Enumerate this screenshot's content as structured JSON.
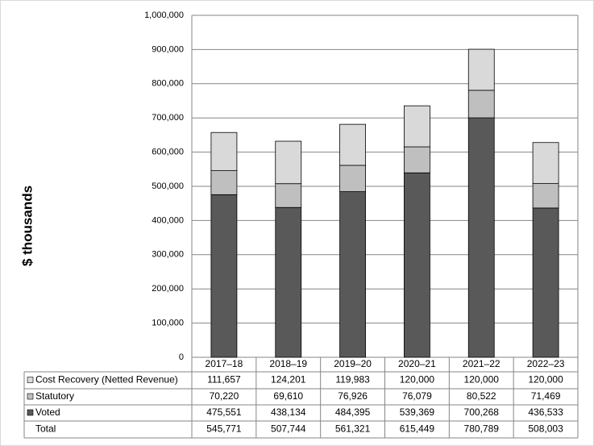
{
  "chart_data": {
    "type": "stacked_bar",
    "y_label": "$ thousands",
    "categories": [
      "2017–18",
      "2018–19",
      "2019–20",
      "2020–21",
      "2021–22",
      "2022–23"
    ],
    "series": [
      {
        "name": "Voted",
        "color": "#595959",
        "values": [
          475551,
          438134,
          484395,
          539369,
          700268,
          436533
        ],
        "value_labels": [
          "475,551",
          "438,134",
          "484,395",
          "539,369",
          "700,268",
          "436,533"
        ]
      },
      {
        "name": "Statutory",
        "color": "#bfbfbf",
        "values": [
          70220,
          69610,
          76926,
          76079,
          80522,
          71469
        ],
        "value_labels": [
          "70,220",
          "69,610",
          "76,926",
          "76,079",
          "80,522",
          "71,469"
        ]
      },
      {
        "name": "Cost Recovery (Netted Revenue)",
        "color": "#d9d9d9",
        "values": [
          111657,
          124201,
          119983,
          120000,
          120000,
          120000
        ],
        "value_labels": [
          "111,657",
          "124,201",
          "119,983",
          "120,000",
          "120,000",
          "120,000"
        ]
      }
    ],
    "total": {
      "name": "Total",
      "values": [
        545771,
        507744,
        561321,
        615449,
        780789,
        508003
      ],
      "value_labels": [
        "545,771",
        "507,744",
        "561,321",
        "615,449",
        "780,789",
        "508,003"
      ]
    },
    "ylim": [
      0,
      1000000
    ],
    "yticks": [
      0,
      {
        "value": 100000,
        "label": "100,000"
      },
      {
        "value": 200000,
        "label": "200,000"
      },
      {
        "value": 300000,
        "label": "300,000"
      },
      {
        "value": 400000,
        "label": "400,000"
      },
      {
        "value": 500000,
        "label": "500,000"
      },
      {
        "value": 600000,
        "label": "600,000"
      },
      {
        "value": 700000,
        "label": "700,000"
      },
      {
        "value": 800000,
        "label": "800,000"
      },
      {
        "value": 900000,
        "label": "900,000"
      },
      {
        "value": 1000000,
        "label": "1,000,000"
      }
    ],
    "grid": true
  }
}
